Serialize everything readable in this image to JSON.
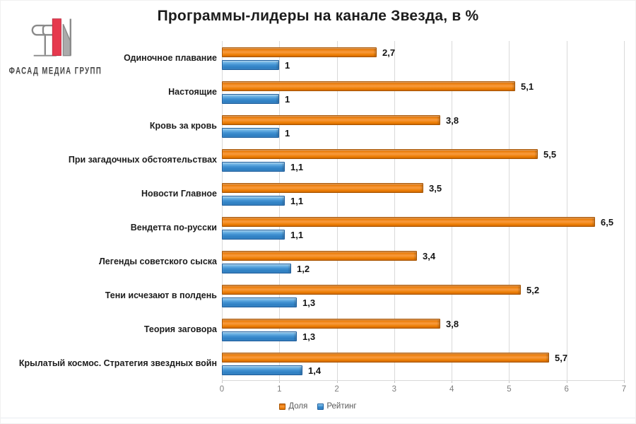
{
  "logo": {
    "text": "ФАСАД МЕДИА ГРУПП"
  },
  "title": "Программы-лидеры на канале Звезда, в %",
  "chart_data": {
    "type": "bar",
    "orientation": "horizontal",
    "title": "Программы-лидеры на канале Звезда, в %",
    "categories": [
      "Одиночное плавание",
      "Настоящие",
      "Кровь за кровь",
      "При загадочных обстоятельствах",
      "Новости Главное",
      "Вендетта по-русски",
      "Легенды советского сыска",
      "Тени исчезают в полдень",
      "Теория заговора",
      "Крылатый космос. Стратегия звездных войн"
    ],
    "series": [
      {
        "name": "Доля",
        "color": "#F08214",
        "border": "#A85400",
        "gradient": [
          "#cf6502",
          "#ee8312",
          "#f89a3e",
          "#ee7f05",
          "#db6f02"
        ],
        "values": [
          2.7,
          5.1,
          3.8,
          5.5,
          3.5,
          6.5,
          3.4,
          5.2,
          3.8,
          5.7
        ]
      },
      {
        "name": "Рейтинг",
        "color": "#3F8DCE",
        "border": "#1C5D9D",
        "gradient": [
          "#8dc8f0",
          "#6cb2e4",
          "#4292d2",
          "#2f80c3",
          "#3d89cb"
        ],
        "values": [
          1,
          1,
          1,
          1.1,
          1.1,
          1.1,
          1.2,
          1.3,
          1.3,
          1.4
        ]
      }
    ],
    "value_labels": true,
    "decimal_separator": ",",
    "xlim": [
      0,
      7
    ],
    "xticks": [
      0,
      1,
      2,
      3,
      4,
      5,
      6,
      7
    ],
    "grid": true,
    "legend_position": "bottom"
  }
}
